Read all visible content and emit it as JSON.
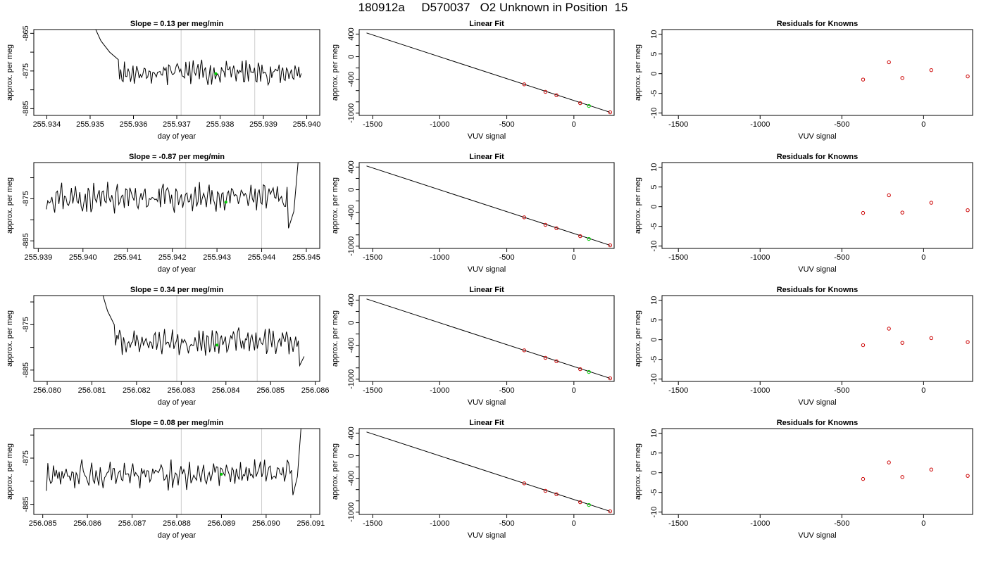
{
  "figure": {
    "title": "180912a     D570037   O2 Unknown in Position  15"
  },
  "colors": {
    "trace": "#000000",
    "axis": "#000000",
    "vertical_marker": "#cccccc",
    "unknown_point": "#00cc00",
    "known_point": "#cc0000"
  },
  "chart_data": [
    {
      "row": 1,
      "type": "line",
      "title": "Slope =  0.13  per meg/min",
      "xlabel": "day of year",
      "ylabel": "approx. per meg",
      "xlim": [
        255.9337,
        255.9403
      ],
      "ylim": [
        -886.8,
        -864.0
      ],
      "xticks": [
        255.934,
        255.935,
        255.936,
        255.937,
        255.938,
        255.939,
        255.94
      ],
      "xtick_labels": [
        "255.934",
        "255.935",
        "255.936",
        "255.937",
        "255.938",
        "255.939",
        "255.940"
      ],
      "yticks": [
        -865,
        -870,
        -875,
        -880,
        -885
      ],
      "ytick_labels": [
        "-865",
        "",
        "-875",
        "",
        "-885"
      ],
      "vlines": [
        255.9371,
        255.9388
      ],
      "unknown_marker": {
        "x": 255.9379,
        "y": -875.7
      },
      "trace": {
        "start": 255.93505,
        "end": 255.9399,
        "n": 150,
        "base": -875.5,
        "amp": 2.4,
        "seed": 11,
        "head": [
          {
            "x": 255.93505,
            "y": -862
          },
          {
            "x": 255.93525,
            "y": -867
          },
          {
            "x": 255.93545,
            "y": -870
          },
          {
            "x": 255.93565,
            "y": -872
          }
        ],
        "tail": []
      }
    },
    {
      "row": 1,
      "type": "line",
      "title": "Linear Fit",
      "xlabel": "VUV signal",
      "ylabel": "approx. per meg",
      "xlim": [
        -1600,
        300
      ],
      "ylim": [
        -1040,
        480
      ],
      "xticks": [
        -1500,
        -1000,
        -500,
        0
      ],
      "xtick_labels": [
        "-1500",
        "-1000",
        "-500",
        "0"
      ],
      "yticks": [
        400,
        200,
        0,
        -200,
        -400,
        -600,
        -800,
        -1000
      ],
      "ytick_labels": [
        "400",
        "",
        "0",
        "",
        "-400",
        "",
        "",
        "-1000"
      ],
      "fit_line": {
        "x": [
          -1545,
          270
        ],
        "y": [
          420,
          -985
        ]
      },
      "known_points": [
        {
          "x": -370,
          "y": -490
        },
        {
          "x": -212,
          "y": -622
        },
        {
          "x": -130,
          "y": -683
        },
        {
          "x": 47,
          "y": -823
        },
        {
          "x": 270,
          "y": -985
        }
      ],
      "unknown_point": {
        "x": 112,
        "y": -872
      }
    },
    {
      "row": 1,
      "type": "scatter",
      "title": "Residuals for Knowns",
      "xlabel": "VUV signal",
      "ylabel": "approx. per meg",
      "xlim": [
        -1600,
        300
      ],
      "ylim": [
        -10.6,
        11.2
      ],
      "xticks": [
        -1500,
        -1000,
        -500,
        0
      ],
      "xtick_labels": [
        "-1500",
        "-1000",
        "-500",
        "0"
      ],
      "yticks": [
        10,
        5,
        0,
        -5,
        -10
      ],
      "ytick_labels": [
        "10",
        "5",
        "0",
        "-5",
        "-10"
      ],
      "points": [
        {
          "x": -370,
          "y": -1.5
        },
        {
          "x": -212,
          "y": 2.9
        },
        {
          "x": -130,
          "y": -1.1
        },
        {
          "x": 47,
          "y": 0.9
        },
        {
          "x": 270,
          "y": -0.7
        }
      ]
    },
    {
      "row": 2,
      "type": "line",
      "title": "Slope =  -0.87  per meg/min",
      "xlabel": "day of year",
      "ylabel": "approx. per meg",
      "xlim": [
        255.9389,
        255.9453
      ],
      "ylim": [
        -886.8,
        -866.4
      ],
      "xticks": [
        255.939,
        255.94,
        255.941,
        255.942,
        255.943,
        255.944,
        255.945
      ],
      "xtick_labels": [
        "255.939",
        "255.940",
        "255.941",
        "255.942",
        "255.943",
        "255.944",
        "255.945"
      ],
      "yticks": [
        -870,
        -875,
        -880,
        -885
      ],
      "ytick_labels": [
        "",
        "-875",
        "",
        "-885"
      ],
      "vlines": [
        255.9423,
        255.944
      ],
      "unknown_marker": {
        "x": 255.9432,
        "y": -875.8
      },
      "trace": {
        "start": 255.93915,
        "end": 255.94485,
        "n": 175,
        "base": -874.8,
        "amp": 2.6,
        "seed": 23,
        "head": [],
        "tail": [
          {
            "x": 255.9446,
            "y": -882
          },
          {
            "x": 255.94472,
            "y": -878
          },
          {
            "x": 255.94485,
            "y": -862
          }
        ]
      }
    },
    {
      "row": 2,
      "type": "line",
      "title": "Linear Fit",
      "xlabel": "VUV signal",
      "ylabel": "approx. per meg",
      "xlim": [
        -1600,
        300
      ],
      "ylim": [
        -1040,
        480
      ],
      "xticks": [
        -1500,
        -1000,
        -500,
        0
      ],
      "xtick_labels": [
        "-1500",
        "-1000",
        "-500",
        "0"
      ],
      "yticks": [
        400,
        200,
        0,
        -200,
        -400,
        -600,
        -800,
        -1000
      ],
      "ytick_labels": [
        "400",
        "",
        "0",
        "",
        "-400",
        "",
        "",
        "-1000"
      ],
      "fit_line": {
        "x": [
          -1545,
          270
        ],
        "y": [
          420,
          -985
        ]
      },
      "known_points": [
        {
          "x": -370,
          "y": -490
        },
        {
          "x": -212,
          "y": -622
        },
        {
          "x": -130,
          "y": -683
        },
        {
          "x": 47,
          "y": -823
        },
        {
          "x": 270,
          "y": -985
        }
      ],
      "unknown_point": {
        "x": 112,
        "y": -872
      }
    },
    {
      "row": 2,
      "type": "scatter",
      "title": "Residuals for Knowns",
      "xlabel": "VUV signal",
      "ylabel": "approx. per meg",
      "xlim": [
        -1600,
        300
      ],
      "ylim": [
        -10.6,
        11.2
      ],
      "xticks": [
        -1500,
        -1000,
        -500,
        0
      ],
      "xtick_labels": [
        "-1500",
        "-1000",
        "-500",
        "0"
      ],
      "yticks": [
        10,
        5,
        0,
        -5,
        -10
      ],
      "ytick_labels": [
        "10",
        "5",
        "0",
        "-5",
        "-10"
      ],
      "points": [
        {
          "x": -370,
          "y": -1.6
        },
        {
          "x": -212,
          "y": 2.9
        },
        {
          "x": -130,
          "y": -1.5
        },
        {
          "x": 47,
          "y": 1.0
        },
        {
          "x": 270,
          "y": -0.9
        }
      ]
    },
    {
      "row": 3,
      "type": "line",
      "title": "Slope =  0.34  per meg/min",
      "xlabel": "day of year",
      "ylabel": "approx. per meg",
      "xlim": [
        256.0797,
        256.0861
      ],
      "ylim": [
        -887.5,
        -868.6
      ],
      "xticks": [
        256.08,
        256.081,
        256.082,
        256.083,
        256.084,
        256.085,
        256.086
      ],
      "xtick_labels": [
        "256.080",
        "256.081",
        "256.082",
        "256.083",
        "256.084",
        "256.085",
        "256.086"
      ],
      "yticks": [
        -870,
        -875,
        -880,
        -885
      ],
      "ytick_labels": [
        "",
        "-875",
        "",
        "-885"
      ],
      "vlines": [
        256.0829,
        256.0847
      ],
      "unknown_marker": {
        "x": 256.0838,
        "y": -879.5
      },
      "trace": {
        "start": 256.0812,
        "end": 256.08575,
        "n": 140,
        "base": -878.8,
        "amp": 2.2,
        "seed": 37,
        "head": [
          {
            "x": 256.0812,
            "y": -867
          },
          {
            "x": 256.08135,
            "y": -872
          },
          {
            "x": 256.0815,
            "y": -875
          }
        ],
        "tail": [
          {
            "x": 256.08565,
            "y": -884
          },
          {
            "x": 256.08575,
            "y": -882
          }
        ]
      }
    },
    {
      "row": 3,
      "type": "line",
      "title": "Linear Fit",
      "xlabel": "VUV signal",
      "ylabel": "approx. per meg",
      "xlim": [
        -1600,
        300
      ],
      "ylim": [
        -1040,
        480
      ],
      "xticks": [
        -1500,
        -1000,
        -500,
        0
      ],
      "xtick_labels": [
        "-1500",
        "-1000",
        "-500",
        "0"
      ],
      "yticks": [
        400,
        200,
        0,
        -200,
        -400,
        -600,
        -800,
        -1000
      ],
      "ytick_labels": [
        "400",
        "",
        "0",
        "",
        "-400",
        "",
        "",
        "-1000"
      ],
      "fit_line": {
        "x": [
          -1545,
          270
        ],
        "y": [
          420,
          -985
        ]
      },
      "known_points": [
        {
          "x": -370,
          "y": -490
        },
        {
          "x": -212,
          "y": -622
        },
        {
          "x": -130,
          "y": -683
        },
        {
          "x": 47,
          "y": -823
        },
        {
          "x": 270,
          "y": -985
        }
      ],
      "unknown_point": {
        "x": 112,
        "y": -872
      }
    },
    {
      "row": 3,
      "type": "scatter",
      "title": "Residuals for Knowns",
      "xlabel": "VUV signal",
      "ylabel": "approx. per meg",
      "xlim": [
        -1600,
        300
      ],
      "ylim": [
        -10.6,
        11.2
      ],
      "xticks": [
        -1500,
        -1000,
        -500,
        0
      ],
      "xtick_labels": [
        "-1500",
        "-1000",
        "-500",
        "0"
      ],
      "yticks": [
        10,
        5,
        0,
        -5,
        -10
      ],
      "ytick_labels": [
        "10",
        "5",
        "0",
        "-5",
        "-10"
      ],
      "points": [
        {
          "x": -370,
          "y": -1.4
        },
        {
          "x": -212,
          "y": 2.8
        },
        {
          "x": -130,
          "y": -0.8
        },
        {
          "x": 47,
          "y": 0.4
        },
        {
          "x": 270,
          "y": -0.6
        }
      ]
    },
    {
      "row": 4,
      "type": "line",
      "title": "Slope =  0.08  per meg/min",
      "xlabel": "day of year",
      "ylabel": "approx. per meg",
      "xlim": [
        256.0848,
        256.0912
      ],
      "ylim": [
        -887.2,
        -868.6
      ],
      "xticks": [
        256.085,
        256.086,
        256.087,
        256.088,
        256.089,
        256.09,
        256.091
      ],
      "xtick_labels": [
        "256.085",
        "256.086",
        "256.087",
        "256.088",
        "256.089",
        "256.090",
        "256.091"
      ],
      "yticks": [
        -870,
        -875,
        -880,
        -885
      ],
      "ytick_labels": [
        "",
        "-875",
        "",
        "-885"
      ],
      "vlines": [
        256.0881,
        256.0899
      ],
      "unknown_marker": {
        "x": 256.089,
        "y": -878.5
      },
      "trace": {
        "start": 256.08505,
        "end": 256.0908,
        "n": 175,
        "base": -878.5,
        "amp": 2.4,
        "seed": 53,
        "head": [],
        "tail": [
          {
            "x": 256.0906,
            "y": -883
          },
          {
            "x": 256.0907,
            "y": -879
          },
          {
            "x": 256.0908,
            "y": -866
          }
        ]
      }
    },
    {
      "row": 4,
      "type": "line",
      "title": "Linear Fit",
      "xlabel": "VUV signal",
      "ylabel": "approx. per meg",
      "xlim": [
        -1600,
        300
      ],
      "ylim": [
        -1040,
        480
      ],
      "xticks": [
        -1500,
        -1000,
        -500,
        0
      ],
      "xtick_labels": [
        "-1500",
        "-1000",
        "-500",
        "0"
      ],
      "yticks": [
        400,
        200,
        0,
        -200,
        -400,
        -600,
        -800,
        -1000
      ],
      "ytick_labels": [
        "400",
        "",
        "0",
        "",
        "-400",
        "",
        "",
        "-1000"
      ],
      "fit_line": {
        "x": [
          -1545,
          270
        ],
        "y": [
          420,
          -985
        ]
      },
      "known_points": [
        {
          "x": -370,
          "y": -490
        },
        {
          "x": -212,
          "y": -622
        },
        {
          "x": -130,
          "y": -683
        },
        {
          "x": 47,
          "y": -823
        },
        {
          "x": 270,
          "y": -985
        }
      ],
      "unknown_point": {
        "x": 112,
        "y": -872
      }
    },
    {
      "row": 4,
      "type": "scatter",
      "title": "Residuals for Knowns",
      "xlabel": "VUV signal",
      "ylabel": "approx. per meg",
      "xlim": [
        -1600,
        300
      ],
      "ylim": [
        -10.6,
        11.2
      ],
      "xticks": [
        -1500,
        -1000,
        -500,
        0
      ],
      "xtick_labels": [
        "-1500",
        "-1000",
        "-500",
        "0"
      ],
      "yticks": [
        10,
        5,
        0,
        -5,
        -10
      ],
      "ytick_labels": [
        "10",
        "5",
        "0",
        "-5",
        "-10"
      ],
      "points": [
        {
          "x": -370,
          "y": -1.6
        },
        {
          "x": -212,
          "y": 2.6
        },
        {
          "x": -130,
          "y": -1.1
        },
        {
          "x": 47,
          "y": 0.8
        },
        {
          "x": 270,
          "y": -0.8
        }
      ]
    }
  ]
}
